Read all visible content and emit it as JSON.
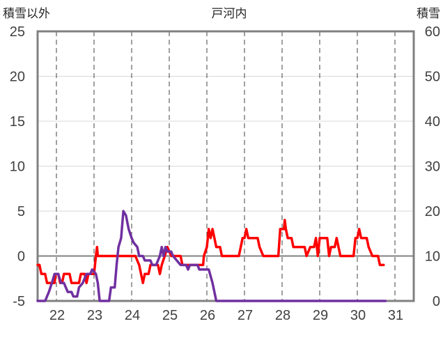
{
  "chart_data": {
    "type": "line",
    "title": "戸河内",
    "left_axis_label": "積雪以外",
    "right_axis_label": "積雪",
    "ylim_left": [
      -5,
      25
    ],
    "yticks_left": [
      "25",
      "20",
      "15",
      "10",
      "5",
      "0",
      "-5"
    ],
    "ylim_right": [
      0,
      60
    ],
    "yticks_right": [
      "60",
      "50",
      "40",
      "30",
      "20",
      "10",
      "0"
    ],
    "xlim": [
      21.5,
      31.5
    ],
    "xticks": [
      "22",
      "23",
      "24",
      "25",
      "26",
      "27",
      "28",
      "29",
      "30",
      "31"
    ],
    "grid": "vertical dashed lines at each day",
    "series": [
      {
        "axis": "left",
        "color": "#ff0000",
        "points": [
          [
            21.5,
            -1
          ],
          [
            21.55,
            -1
          ],
          [
            21.6,
            -2
          ],
          [
            21.7,
            -2
          ],
          [
            21.75,
            -3
          ],
          [
            21.95,
            -3
          ],
          [
            21.98,
            -2
          ],
          [
            22.05,
            -2
          ],
          [
            22.1,
            -3
          ],
          [
            22.15,
            -3
          ],
          [
            22.2,
            -2
          ],
          [
            22.35,
            -2
          ],
          [
            22.4,
            -3
          ],
          [
            22.6,
            -3
          ],
          [
            22.65,
            -2
          ],
          [
            22.75,
            -2
          ],
          [
            22.8,
            -3
          ],
          [
            22.85,
            -2
          ],
          [
            23.0,
            -2
          ],
          [
            23.05,
            0
          ],
          [
            23.08,
            1
          ],
          [
            23.1,
            0
          ],
          [
            23.8,
            0
          ],
          [
            23.85,
            0
          ],
          [
            24.0,
            0
          ],
          [
            24.1,
            0
          ],
          [
            24.2,
            -1
          ],
          [
            24.3,
            -3
          ],
          [
            24.35,
            -2
          ],
          [
            24.45,
            -2
          ],
          [
            24.5,
            -1
          ],
          [
            24.7,
            -1
          ],
          [
            24.75,
            -2
          ],
          [
            24.8,
            -1
          ],
          [
            24.88,
            0
          ],
          [
            24.95,
            1
          ],
          [
            25.05,
            0
          ],
          [
            25.3,
            0
          ],
          [
            25.35,
            -1
          ],
          [
            25.85,
            -1
          ],
          [
            25.9,
            -1
          ],
          [
            25.92,
            0
          ],
          [
            26.0,
            1
          ],
          [
            26.05,
            3
          ],
          [
            26.1,
            2
          ],
          [
            26.15,
            3
          ],
          [
            26.2,
            2
          ],
          [
            26.25,
            1
          ],
          [
            26.35,
            1
          ],
          [
            26.4,
            0
          ],
          [
            26.85,
            0
          ],
          [
            26.9,
            1
          ],
          [
            26.95,
            2
          ],
          [
            27.0,
            2
          ],
          [
            27.05,
            3
          ],
          [
            27.1,
            2
          ],
          [
            27.35,
            2
          ],
          [
            27.4,
            1
          ],
          [
            27.5,
            0
          ],
          [
            27.9,
            0
          ],
          [
            27.95,
            3
          ],
          [
            28.05,
            3
          ],
          [
            28.07,
            4
          ],
          [
            28.1,
            3
          ],
          [
            28.15,
            2
          ],
          [
            28.25,
            2
          ],
          [
            28.3,
            1
          ],
          [
            28.6,
            1
          ],
          [
            28.65,
            0
          ],
          [
            28.75,
            1
          ],
          [
            28.85,
            1
          ],
          [
            28.9,
            2
          ],
          [
            28.95,
            0
          ],
          [
            29.0,
            2
          ],
          [
            29.2,
            2
          ],
          [
            29.25,
            0
          ],
          [
            29.3,
            1
          ],
          [
            29.4,
            1
          ],
          [
            29.45,
            2
          ],
          [
            29.5,
            1
          ],
          [
            29.55,
            0
          ],
          [
            29.9,
            0
          ],
          [
            29.95,
            2
          ],
          [
            30.0,
            2
          ],
          [
            30.05,
            3
          ],
          [
            30.1,
            2
          ],
          [
            30.25,
            2
          ],
          [
            30.3,
            1
          ],
          [
            30.4,
            0
          ],
          [
            30.55,
            0
          ],
          [
            30.6,
            -1
          ],
          [
            30.7,
            -1
          ]
        ]
      },
      {
        "axis": "left",
        "color": "#7030a0",
        "points": [
          [
            21.5,
            -5
          ],
          [
            21.7,
            -5
          ],
          [
            21.8,
            -4
          ],
          [
            21.88,
            -3
          ],
          [
            21.95,
            -2
          ],
          [
            22.05,
            -2
          ],
          [
            22.12,
            -3
          ],
          [
            22.2,
            -3
          ],
          [
            22.3,
            -4
          ],
          [
            22.4,
            -4
          ],
          [
            22.45,
            -4.5
          ],
          [
            22.55,
            -4.5
          ],
          [
            22.6,
            -3.5
          ],
          [
            22.7,
            -3
          ],
          [
            22.8,
            -2
          ],
          [
            22.9,
            -2
          ],
          [
            22.95,
            -1.5
          ],
          [
            23.05,
            -2
          ],
          [
            23.1,
            -3
          ],
          [
            23.15,
            -5
          ],
          [
            23.4,
            -5
          ],
          [
            23.45,
            -3.5
          ],
          [
            23.55,
            -3.5
          ],
          [
            23.6,
            -1
          ],
          [
            23.65,
            1
          ],
          [
            23.72,
            2
          ],
          [
            23.78,
            5
          ],
          [
            23.85,
            4.5
          ],
          [
            23.92,
            3
          ],
          [
            24.0,
            2
          ],
          [
            24.05,
            1.5
          ],
          [
            24.15,
            1
          ],
          [
            24.2,
            0
          ],
          [
            24.3,
            0
          ],
          [
            24.35,
            -0.5
          ],
          [
            24.5,
            -0.5
          ],
          [
            24.55,
            -1
          ],
          [
            24.65,
            -1
          ],
          [
            24.75,
            0
          ],
          [
            24.8,
            1
          ],
          [
            24.85,
            0
          ],
          [
            24.9,
            1
          ],
          [
            24.95,
            0.5
          ],
          [
            25.05,
            0.5
          ],
          [
            25.1,
            0
          ],
          [
            25.2,
            -0.5
          ],
          [
            25.3,
            -1
          ],
          [
            25.45,
            -1
          ],
          [
            25.5,
            -1.5
          ],
          [
            25.55,
            -1
          ],
          [
            25.75,
            -1
          ],
          [
            25.8,
            -1.5
          ],
          [
            26.05,
            -1.5
          ],
          [
            26.15,
            -3
          ],
          [
            26.2,
            -4
          ],
          [
            26.25,
            -5
          ],
          [
            30.75,
            -5
          ]
        ]
      }
    ]
  }
}
